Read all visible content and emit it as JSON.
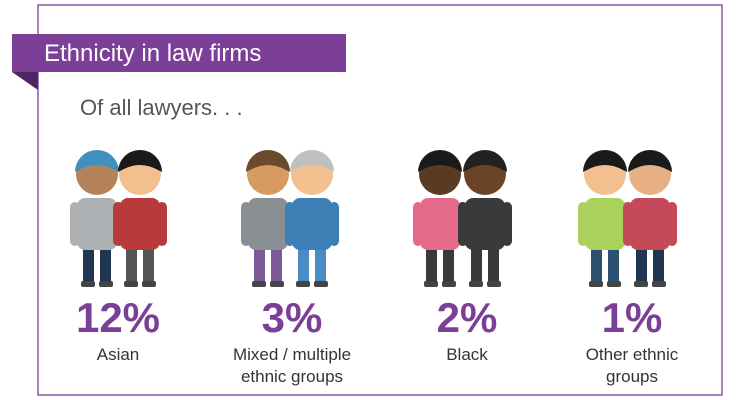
{
  "header": {
    "title": "Ethnicity in law firms",
    "subtitle": "Of all lawyers. . ."
  },
  "groups": [
    {
      "percent": "12%",
      "label_lines": [
        "Asian"
      ]
    },
    {
      "percent": "3%",
      "label_lines": [
        "Mixed / multiple",
        "ethnic groups"
      ]
    },
    {
      "percent": "2%",
      "label_lines": [
        "Black"
      ]
    },
    {
      "percent": "1%",
      "label_lines": [
        "Other ethnic",
        "groups"
      ]
    }
  ]
}
